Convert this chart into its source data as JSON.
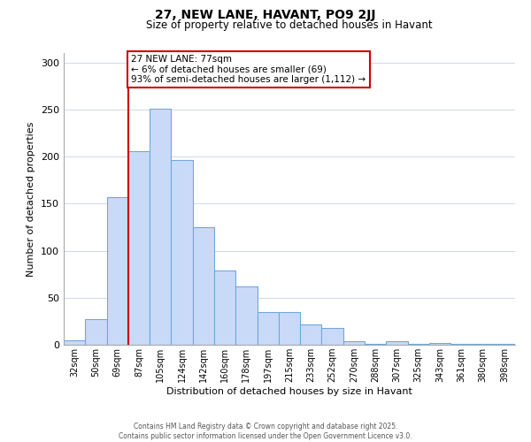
{
  "title": "27, NEW LANE, HAVANT, PO9 2JJ",
  "subtitle": "Size of property relative to detached houses in Havant",
  "xlabel": "Distribution of detached houses by size in Havant",
  "ylabel": "Number of detached properties",
  "bar_labels": [
    "32sqm",
    "50sqm",
    "69sqm",
    "87sqm",
    "105sqm",
    "124sqm",
    "142sqm",
    "160sqm",
    "178sqm",
    "197sqm",
    "215sqm",
    "233sqm",
    "252sqm",
    "270sqm",
    "288sqm",
    "307sqm",
    "325sqm",
    "343sqm",
    "361sqm",
    "380sqm",
    "398sqm"
  ],
  "bar_values": [
    5,
    27,
    157,
    206,
    251,
    196,
    125,
    79,
    62,
    35,
    35,
    22,
    18,
    4,
    1,
    4,
    1,
    2,
    1,
    1,
    1
  ],
  "bar_color": "#c9daf8",
  "bar_edge_color": "#6fa8dc",
  "vline_color": "#cc0000",
  "annotation_text": "27 NEW LANE: 77sqm\n← 6% of detached houses are smaller (69)\n93% of semi-detached houses are larger (1,112) →",
  "annotation_box_color": "#ffffff",
  "annotation_box_edge_color": "#cc0000",
  "ylim": [
    0,
    310
  ],
  "yticks": [
    0,
    50,
    100,
    150,
    200,
    250,
    300
  ],
  "background_color": "#ffffff",
  "grid_color": "#d0d8e8",
  "footer_line1": "Contains HM Land Registry data © Crown copyright and database right 2025.",
  "footer_line2": "Contains public sector information licensed under the Open Government Licence v3.0."
}
